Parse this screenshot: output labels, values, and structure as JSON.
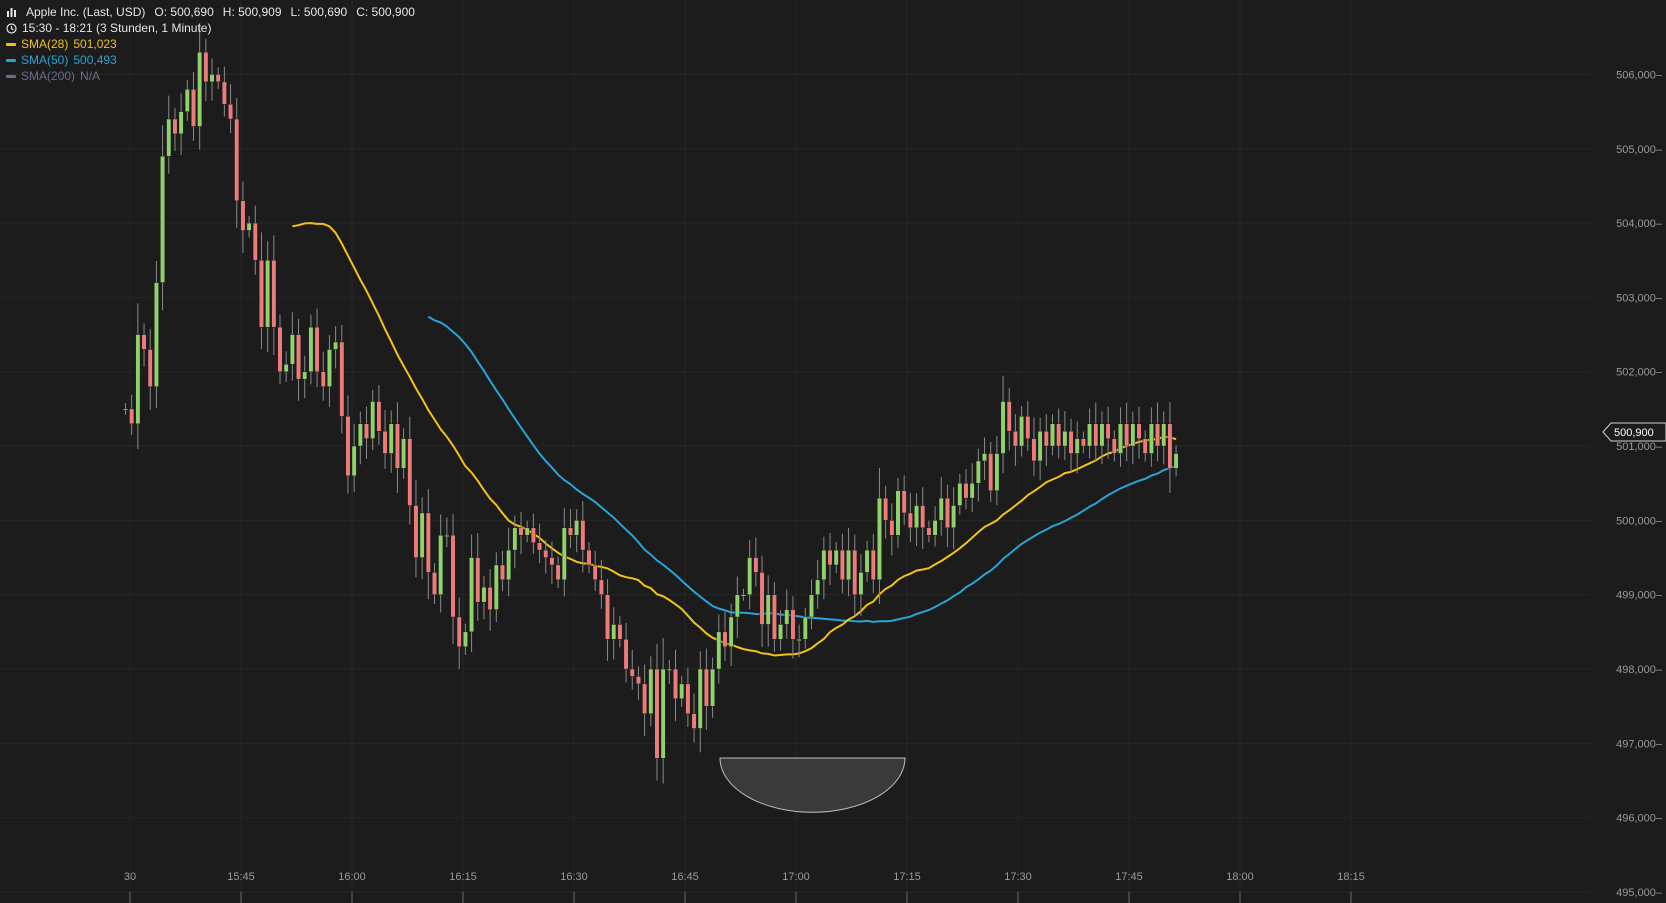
{
  "header": {
    "title": "Apple Inc. (Last, USD)",
    "ohlc": {
      "o": "O: 500,690",
      "h": "H: 500,909",
      "l": "L: 500,690",
      "c": "C: 500,900"
    },
    "range": "15:30 - 18:21 (3 Stunden, 1 Minute)",
    "icons": {
      "bars": "bar-chart-icon",
      "clock": "clock-icon"
    }
  },
  "legend": [
    {
      "label": "SMA(28)",
      "value": "501,023",
      "color": "#f2c21b"
    },
    {
      "label": "SMA(50)",
      "value": "500,493",
      "color": "#2aa3d8"
    },
    {
      "label": "SMA(200)",
      "value": "N/A",
      "color": "#6c6c8a"
    }
  ],
  "price_tag": "500,900",
  "colors": {
    "up": "#8fd16b",
    "down": "#ec7b7b",
    "grid": "#262626",
    "background": "#1c1c1c",
    "axis_text": "#9a9a9a"
  },
  "chart_data": {
    "type": "candlestick",
    "x_ticks": [
      "30",
      "15:45",
      "16:00",
      "16:15",
      "16:30",
      "16:45",
      "17:00",
      "17:15",
      "17:30",
      "17:45",
      "18:00",
      "18:15"
    ],
    "y_ticks": [
      "506,000–",
      "505,000–",
      "504,000–",
      "503,000–",
      "502,000–",
      "501,000–",
      "500,000–",
      "499,000–",
      "498,000–",
      "497,000–",
      "496,000–",
      "495,000–"
    ],
    "ylim": [
      495,
      506.45
    ],
    "grid": true,
    "close_start": 501.5,
    "closes": [
      501.5,
      501.3,
      502.5,
      502.3,
      501.8,
      503.2,
      504.9,
      505.4,
      505.2,
      505.5,
      505.8,
      505.3,
      506.3,
      505.9,
      506.0,
      505.9,
      505.6,
      505.4,
      504.3,
      503.9,
      504.0,
      503.5,
      502.6,
      503.5,
      502.6,
      502.0,
      502.1,
      502.5,
      501.9,
      502.0,
      502.6,
      502.0,
      501.8,
      502.3,
      502.4,
      501.4,
      500.6,
      501.0,
      501.3,
      501.1,
      501.6,
      501.2,
      500.9,
      501.3,
      500.7,
      501.1,
      500.2,
      499.5,
      500.1,
      499.3,
      499.0,
      499.8,
      499.8,
      498.7,
      498.3,
      498.5,
      499.5,
      498.9,
      499.1,
      498.8,
      499.4,
      499.2,
      499.6,
      499.9,
      499.8,
      499.9,
      499.7,
      499.6,
      499.5,
      499.4,
      499.2,
      499.9,
      499.8,
      500.0,
      499.6,
      499.4,
      499.2,
      499.0,
      498.4,
      498.6,
      498.4,
      498.0,
      497.9,
      497.8,
      497.4,
      498.0,
      496.8,
      498.0,
      498.0,
      497.6,
      497.8,
      497.4,
      497.2,
      498.0,
      497.5,
      498.0,
      498.5,
      498.3,
      498.7,
      499.0,
      499.0,
      499.5,
      499.3,
      498.6,
      499.0,
      498.4,
      498.6,
      498.8,
      498.4,
      498.4,
      498.7,
      499.0,
      499.2,
      499.6,
      499.4,
      499.6,
      499.2,
      499.6,
      499.0,
      499.3,
      499.6,
      499.2,
      500.3,
      500.0,
      499.8,
      500.4,
      500.1,
      499.9,
      500.2,
      499.9,
      499.8,
      500.0,
      500.3,
      499.9,
      500.2,
      500.5,
      500.3,
      500.5,
      500.8,
      500.9,
      500.4,
      500.9,
      501.6,
      501.2,
      501.0,
      501.4,
      501.1,
      500.8,
      501.2,
      501.0,
      501.3,
      501.0,
      501.2,
      500.9,
      501.1,
      501.0,
      501.3,
      501.0,
      501.3,
      501.1,
      500.9,
      501.3,
      501.0,
      501.3,
      501.1,
      500.9,
      501.3,
      501.0,
      501.3,
      500.7,
      500.9
    ]
  }
}
